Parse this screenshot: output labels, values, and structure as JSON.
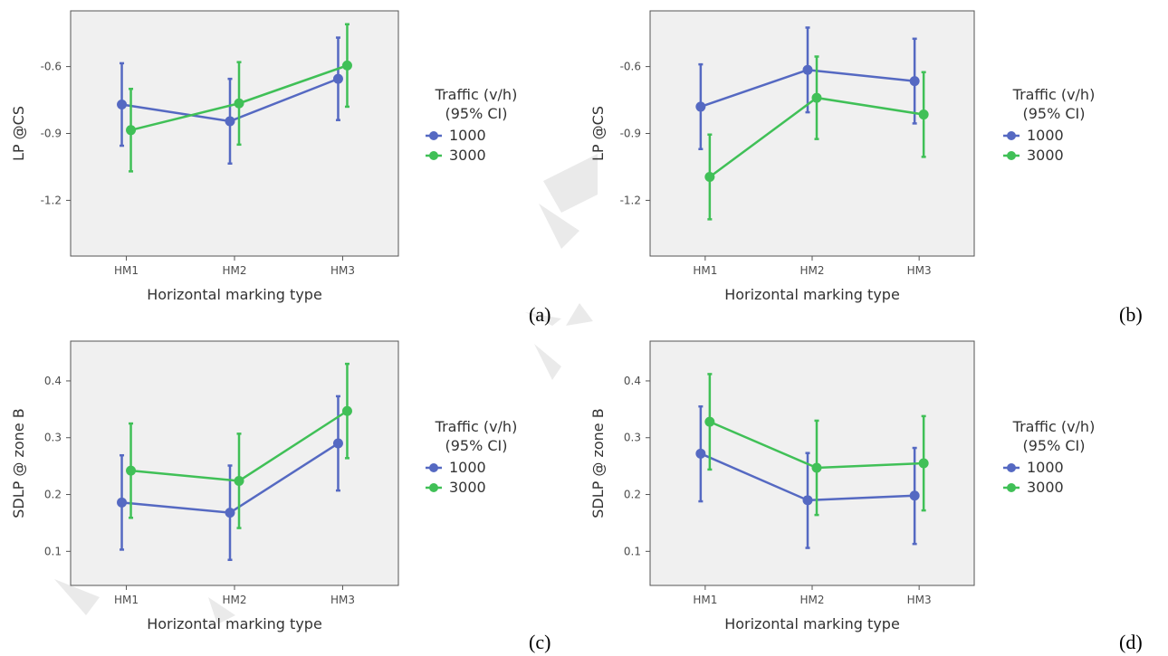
{
  "figure": {
    "colors": {
      "series_1000": "#5569c2",
      "series_3000": "#40c057",
      "panel_bg": "#f0f0f0",
      "panel_border": "#555555"
    }
  },
  "chart_data": [
    {
      "type": "line",
      "panel_label": "(a)",
      "categories": [
        "HM1",
        "HM2",
        "HM3"
      ],
      "xlabel": "Horizontal marking type",
      "ylabel": "LP @CS",
      "ylim": [
        -1.45,
        -0.35
      ],
      "yticks": [
        -0.6,
        -0.9,
        -1.2
      ],
      "ytick_labels": [
        "-0.6",
        "-0.9",
        "-1.2"
      ],
      "error_bars": "95% CI",
      "legend": {
        "title_line1": "Traffic (v/h)",
        "title_line2": "(95% CI)",
        "placement": "right"
      },
      "series": [
        {
          "name": "1000",
          "color": "#5569c2",
          "values": [
            -0.77,
            -0.845,
            -0.655
          ],
          "ci_low": [
            -0.955,
            -1.035,
            -0.84
          ],
          "ci_high": [
            -0.585,
            -0.655,
            -0.47
          ]
        },
        {
          "name": "3000",
          "color": "#40c057",
          "values": [
            -0.885,
            -0.765,
            -0.595
          ],
          "ci_low": [
            -1.07,
            -0.95,
            -0.78
          ],
          "ci_high": [
            -0.7,
            -0.58,
            -0.41
          ]
        }
      ]
    },
    {
      "type": "line",
      "panel_label": "(b)",
      "categories": [
        "HM1",
        "HM2",
        "HM3"
      ],
      "xlabel": "Horizontal marking type",
      "ylabel": "LP @CS",
      "ylim": [
        -1.45,
        -0.35
      ],
      "yticks": [
        -0.6,
        -0.9,
        -1.2
      ],
      "ytick_labels": [
        "-0.6",
        "-0.9",
        "-1.2"
      ],
      "error_bars": "95% CI",
      "legend": {
        "title_line1": "Traffic (v/h)",
        "title_line2": "(95% CI)",
        "placement": "right"
      },
      "series": [
        {
          "name": "1000",
          "color": "#5569c2",
          "values": [
            -0.78,
            -0.615,
            -0.665
          ],
          "ci_low": [
            -0.97,
            -0.805,
            -0.855
          ],
          "ci_high": [
            -0.59,
            -0.425,
            -0.475
          ]
        },
        {
          "name": "3000",
          "color": "#40c057",
          "values": [
            -1.095,
            -0.74,
            -0.815
          ],
          "ci_low": [
            -1.285,
            -0.925,
            -1.005
          ],
          "ci_high": [
            -0.905,
            -0.555,
            -0.625
          ]
        }
      ]
    },
    {
      "type": "line",
      "panel_label": "(c)",
      "categories": [
        "HM1",
        "HM2",
        "HM3"
      ],
      "xlabel": "Horizontal marking type",
      "ylabel": "SDLP @ zone B",
      "ylim": [
        0.04,
        0.47
      ],
      "yticks": [
        0.1,
        0.2,
        0.3,
        0.4
      ],
      "ytick_labels": [
        "0.1",
        "0.2",
        "0.3",
        "0.4"
      ],
      "error_bars": "95% CI",
      "legend": {
        "title_line1": "Traffic (v/h)",
        "title_line2": "(95% CI)",
        "placement": "right"
      },
      "series": [
        {
          "name": "1000",
          "color": "#5569c2",
          "values": [
            0.186,
            0.168,
            0.29
          ],
          "ci_low": [
            0.103,
            0.085,
            0.207
          ],
          "ci_high": [
            0.269,
            0.251,
            0.373
          ]
        },
        {
          "name": "3000",
          "color": "#40c057",
          "values": [
            0.242,
            0.224,
            0.347
          ],
          "ci_low": [
            0.159,
            0.141,
            0.264
          ],
          "ci_high": [
            0.325,
            0.307,
            0.43
          ]
        }
      ]
    },
    {
      "type": "line",
      "panel_label": "(d)",
      "categories": [
        "HM1",
        "HM2",
        "HM3"
      ],
      "xlabel": "Horizontal marking type",
      "ylabel": "SDLP @ zone B",
      "ylim": [
        0.04,
        0.47
      ],
      "yticks": [
        0.1,
        0.2,
        0.3,
        0.4
      ],
      "ytick_labels": [
        "0.1",
        "0.2",
        "0.3",
        "0.4"
      ],
      "error_bars": "95% CI",
      "legend": {
        "title_line1": "Traffic (v/h)",
        "title_line2": "(95% CI)",
        "placement": "right"
      },
      "series": [
        {
          "name": "1000",
          "color": "#5569c2",
          "values": [
            0.272,
            0.19,
            0.198
          ],
          "ci_low": [
            0.188,
            0.106,
            0.113
          ],
          "ci_high": [
            0.355,
            0.273,
            0.282
          ]
        },
        {
          "name": "3000",
          "color": "#40c057",
          "values": [
            0.328,
            0.247,
            0.255
          ],
          "ci_low": [
            0.244,
            0.164,
            0.172
          ],
          "ci_high": [
            0.412,
            0.33,
            0.338
          ]
        }
      ]
    }
  ]
}
